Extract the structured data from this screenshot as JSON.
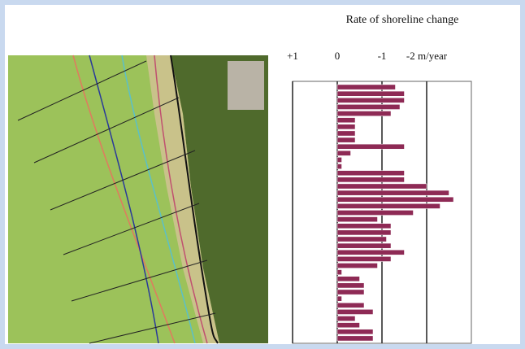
{
  "chart_data": {
    "type": "hbar",
    "title": "Rate of shoreline change",
    "values": [
      -1.3,
      -1.5,
      -1.5,
      -1.4,
      -1.2,
      -0.4,
      -0.4,
      -0.4,
      -0.4,
      -1.5,
      -0.3,
      -0.1,
      -0.1,
      -1.5,
      -1.5,
      -2.0,
      -2.5,
      -2.6,
      -2.3,
      -1.7,
      -0.9,
      -1.2,
      -1.2,
      -1.1,
      -1.2,
      -1.5,
      -1.2,
      -0.9,
      -0.1,
      -0.5,
      -0.6,
      -0.6,
      -0.1,
      -0.6,
      -0.8,
      -0.4,
      -0.5,
      -0.8,
      -0.8
    ],
    "color": "#8e2a55",
    "xlim": [
      1,
      -3
    ],
    "xticks": [
      {
        "value": 1,
        "label": "+1"
      },
      0,
      -1,
      {
        "value": -2,
        "label": "-2 m/year"
      }
    ],
    "grid": true
  }
}
